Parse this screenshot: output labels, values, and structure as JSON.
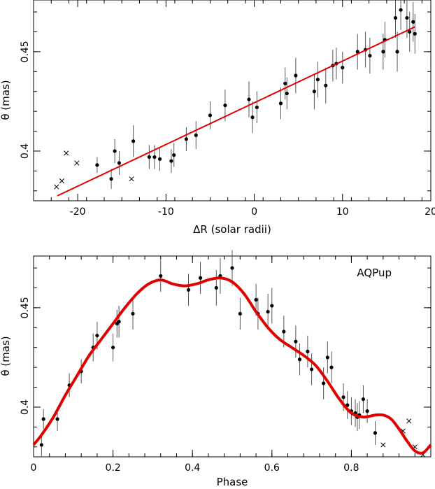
{
  "chart_data": [
    {
      "type": "scatter",
      "title": "",
      "xlabel": "ΔR (solar radii)",
      "ylabel": "θ  (mas)",
      "xlim": [
        -25,
        20
      ],
      "ylim": [
        0.375,
        0.476
      ],
      "xticks": [
        -20,
        -10,
        0,
        10,
        20
      ],
      "yticks": [
        0.4,
        0.45
      ],
      "ytick_labels": [
        "0.4",
        "0.45"
      ],
      "grid": false,
      "series": [
        {
          "marker": "dot",
          "points": [
            {
              "x": -17.8,
              "y": 0.393,
              "err": 0.004
            },
            {
              "x": -16.2,
              "y": 0.386,
              "err": 0.005
            },
            {
              "x": -15.8,
              "y": 0.4,
              "err": 0.006
            },
            {
              "x": -15.3,
              "y": 0.394,
              "err": 0.006
            },
            {
              "x": -13.7,
              "y": 0.405,
              "err": 0.008
            },
            {
              "x": -11.9,
              "y": 0.397,
              "err": 0.006
            },
            {
              "x": -11.3,
              "y": 0.397,
              "err": 0.006
            },
            {
              "x": -10.7,
              "y": 0.396,
              "err": 0.006
            },
            {
              "x": -9.4,
              "y": 0.395,
              "err": 0.006
            },
            {
              "x": -9.1,
              "y": 0.398,
              "err": 0.006
            },
            {
              "x": -7.7,
              "y": 0.406,
              "err": 0.006
            },
            {
              "x": -6.6,
              "y": 0.408,
              "err": 0.007
            },
            {
              "x": -5.0,
              "y": 0.418,
              "err": 0.007
            },
            {
              "x": -3.3,
              "y": 0.423,
              "err": 0.008
            },
            {
              "x": -0.6,
              "y": 0.426,
              "err": 0.009
            },
            {
              "x": -0.2,
              "y": 0.417,
              "err": 0.008
            },
            {
              "x": 0.3,
              "y": 0.422,
              "err": 0.008
            },
            {
              "x": 3.0,
              "y": 0.424,
              "err": 0.008
            },
            {
              "x": 3.5,
              "y": 0.434,
              "err": 0.008
            },
            {
              "x": 3.7,
              "y": 0.429,
              "err": 0.008
            },
            {
              "x": 4.7,
              "y": 0.438,
              "err": 0.009
            },
            {
              "x": 6.8,
              "y": 0.43,
              "err": 0.009
            },
            {
              "x": 7.2,
              "y": 0.436,
              "err": 0.009
            },
            {
              "x": 8.1,
              "y": 0.433,
              "err": 0.009
            },
            {
              "x": 8.9,
              "y": 0.443,
              "err": 0.008
            },
            {
              "x": 9.3,
              "y": 0.444,
              "err": 0.008
            },
            {
              "x": 10.0,
              "y": 0.442,
              "err": 0.008
            },
            {
              "x": 11.7,
              "y": 0.45,
              "err": 0.009
            },
            {
              "x": 12.6,
              "y": 0.451,
              "err": 0.009
            },
            {
              "x": 13.1,
              "y": 0.448,
              "err": 0.009
            },
            {
              "x": 14.6,
              "y": 0.45,
              "err": 0.009
            },
            {
              "x": 14.8,
              "y": 0.456,
              "err": 0.009
            },
            {
              "x": 16.0,
              "y": 0.467,
              "err": 0.01
            },
            {
              "x": 16.2,
              "y": 0.45,
              "err": 0.01
            },
            {
              "x": 16.6,
              "y": 0.471,
              "err": 0.01
            },
            {
              "x": 17.3,
              "y": 0.467,
              "err": 0.01
            },
            {
              "x": 17.6,
              "y": 0.46,
              "err": 0.01
            },
            {
              "x": 18.0,
              "y": 0.465,
              "err": 0.01
            },
            {
              "x": 18.2,
              "y": 0.459,
              "err": 0.01
            }
          ]
        },
        {
          "marker": "cross",
          "points": [
            {
              "x": -22.4,
              "y": 0.382
            },
            {
              "x": -21.8,
              "y": 0.385
            },
            {
              "x": -21.3,
              "y": 0.399
            },
            {
              "x": -20.1,
              "y": 0.394
            },
            {
              "x": -13.9,
              "y": 0.386
            }
          ]
        }
      ],
      "fit_line": {
        "x": [
          -22.3,
          18.2
        ],
        "y": [
          0.3775,
          0.4625
        ]
      }
    },
    {
      "type": "scatter",
      "title": "",
      "annotation": "AQPup",
      "xlabel": "Phase",
      "ylabel": "θ (mas)",
      "xlim": [
        0,
        1
      ],
      "ylim": [
        0.375,
        0.476
      ],
      "xticks": [
        0,
        0.2,
        0.4,
        0.6,
        0.8
      ],
      "xtick_labels": [
        "0",
        "0.2",
        "0.4",
        "0.6",
        "0.8"
      ],
      "yticks": [
        0.4,
        0.45
      ],
      "ytick_labels": [
        "0.4",
        "0.45"
      ],
      "grid": false,
      "series": [
        {
          "marker": "dot",
          "points": [
            {
              "x": 0.02,
              "y": 0.381,
              "err": 0.006
            },
            {
              "x": 0.025,
              "y": 0.394,
              "err": 0.005
            },
            {
              "x": 0.06,
              "y": 0.394,
              "err": 0.006
            },
            {
              "x": 0.09,
              "y": 0.411,
              "err": 0.006
            },
            {
              "x": 0.12,
              "y": 0.418,
              "err": 0.006
            },
            {
              "x": 0.15,
              "y": 0.43,
              "err": 0.007
            },
            {
              "x": 0.16,
              "y": 0.436,
              "err": 0.007
            },
            {
              "x": 0.2,
              "y": 0.43,
              "err": 0.007
            },
            {
              "x": 0.21,
              "y": 0.442,
              "err": 0.007
            },
            {
              "x": 0.215,
              "y": 0.443,
              "err": 0.008
            },
            {
              "x": 0.25,
              "y": 0.447,
              "err": 0.008
            },
            {
              "x": 0.32,
              "y": 0.466,
              "err": 0.008
            },
            {
              "x": 0.39,
              "y": 0.459,
              "err": 0.008
            },
            {
              "x": 0.42,
              "y": 0.465,
              "err": 0.008
            },
            {
              "x": 0.46,
              "y": 0.46,
              "err": 0.009
            },
            {
              "x": 0.47,
              "y": 0.466,
              "err": 0.009
            },
            {
              "x": 0.5,
              "y": 0.47,
              "err": 0.009
            },
            {
              "x": 0.52,
              "y": 0.447,
              "err": 0.008
            },
            {
              "x": 0.56,
              "y": 0.454,
              "err": 0.008
            },
            {
              "x": 0.565,
              "y": 0.447,
              "err": 0.008
            },
            {
              "x": 0.59,
              "y": 0.448,
              "err": 0.009
            },
            {
              "x": 0.6,
              "y": 0.451,
              "err": 0.009
            },
            {
              "x": 0.63,
              "y": 0.438,
              "err": 0.008
            },
            {
              "x": 0.66,
              "y": 0.433,
              "err": 0.008
            },
            {
              "x": 0.67,
              "y": 0.424,
              "err": 0.008
            },
            {
              "x": 0.69,
              "y": 0.428,
              "err": 0.008
            },
            {
              "x": 0.7,
              "y": 0.419,
              "err": 0.008
            },
            {
              "x": 0.73,
              "y": 0.412,
              "err": 0.008
            },
            {
              "x": 0.74,
              "y": 0.425,
              "err": 0.008
            },
            {
              "x": 0.75,
              "y": 0.42,
              "err": 0.008
            },
            {
              "x": 0.78,
              "y": 0.405,
              "err": 0.007
            },
            {
              "x": 0.79,
              "y": 0.401,
              "err": 0.007
            },
            {
              "x": 0.8,
              "y": 0.398,
              "err": 0.007
            },
            {
              "x": 0.81,
              "y": 0.397,
              "err": 0.007
            },
            {
              "x": 0.815,
              "y": 0.395,
              "err": 0.007
            },
            {
              "x": 0.82,
              "y": 0.396,
              "err": 0.007
            },
            {
              "x": 0.83,
              "y": 0.404,
              "err": 0.007
            },
            {
              "x": 0.84,
              "y": 0.398,
              "err": 0.006
            },
            {
              "x": 0.86,
              "y": 0.387,
              "err": 0.006
            }
          ]
        },
        {
          "marker": "cross",
          "points": [
            {
              "x": 0.88,
              "y": 0.381
            },
            {
              "x": 0.93,
              "y": 0.388
            },
            {
              "x": 0.945,
              "y": 0.393
            },
            {
              "x": 0.96,
              "y": 0.38
            },
            {
              "x": 0.98,
              "y": 0.376
            }
          ]
        }
      ],
      "fit_curve": {
        "x": [
          0,
          0.02,
          0.05,
          0.08,
          0.11,
          0.14,
          0.17,
          0.2,
          0.23,
          0.26,
          0.29,
          0.32,
          0.35,
          0.38,
          0.41,
          0.44,
          0.47,
          0.5,
          0.53,
          0.56,
          0.59,
          0.62,
          0.65,
          0.68,
          0.71,
          0.74,
          0.77,
          0.8,
          0.83,
          0.86,
          0.88,
          0.9,
          0.92,
          0.94,
          0.96,
          0.98,
          1.0
        ],
        "y": [
          0.381,
          0.386,
          0.395,
          0.406,
          0.416,
          0.426,
          0.434,
          0.442,
          0.45,
          0.457,
          0.462,
          0.464,
          0.462,
          0.461,
          0.462,
          0.464,
          0.465,
          0.463,
          0.457,
          0.448,
          0.44,
          0.434,
          0.43,
          0.426,
          0.421,
          0.413,
          0.404,
          0.397,
          0.395,
          0.396,
          0.396,
          0.394,
          0.389,
          0.383,
          0.378,
          0.377,
          0.381
        ]
      }
    }
  ]
}
